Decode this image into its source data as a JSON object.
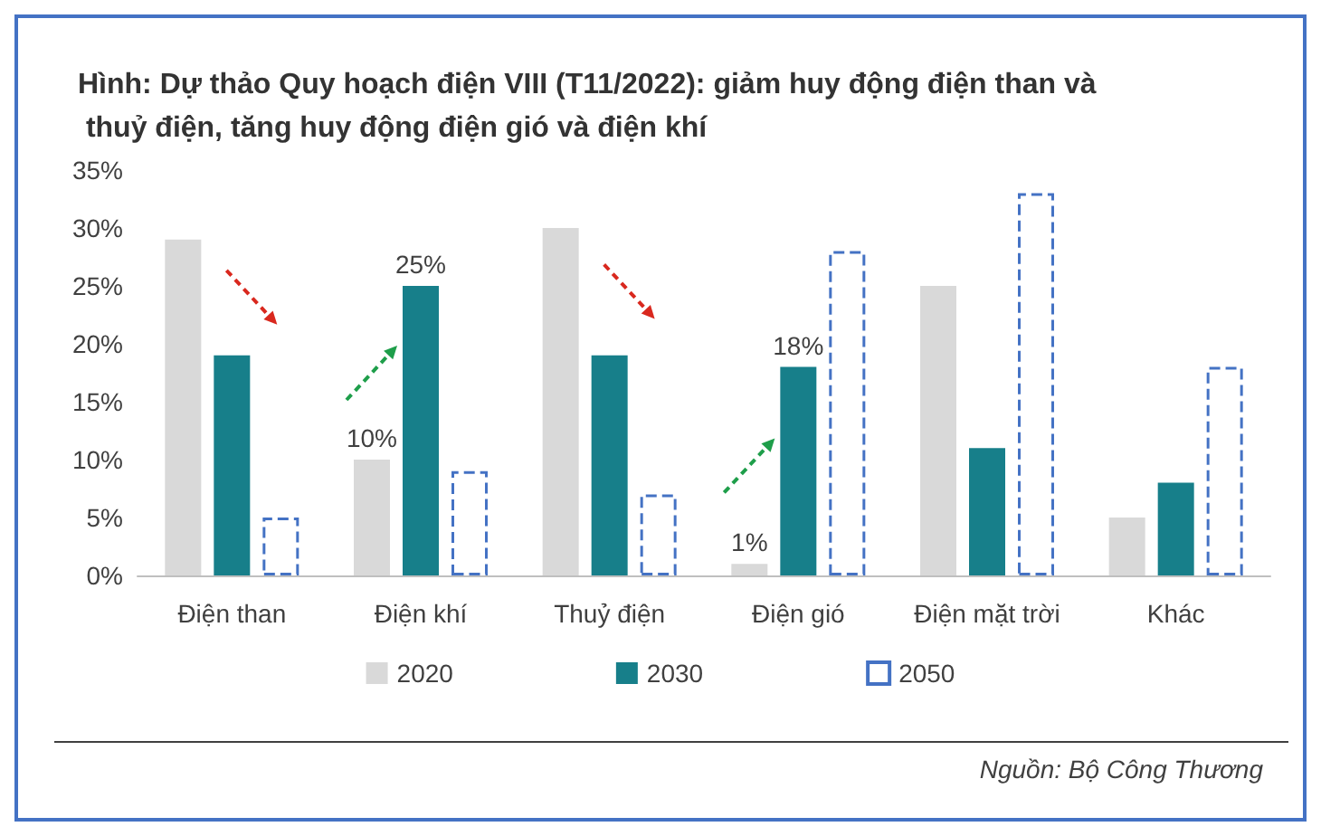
{
  "chart_data": {
    "type": "bar",
    "title": "Hình: Dự thảo Quy hoạch điện VIII (T11/2022): giảm huy động điện than và thuỷ điện, tăng huy động điện gió và điện khí",
    "categories": [
      "Điện than",
      "Điện khí",
      "Thuỷ điện",
      "Điện gió",
      "Điện mặt trời",
      "Khác"
    ],
    "series": [
      {
        "name": "2020",
        "color": "#d9d9d9",
        "values": [
          29,
          10,
          30,
          1,
          25,
          5
        ],
        "value_labels": [
          null,
          "10%",
          null,
          "1%",
          null,
          null
        ]
      },
      {
        "name": "2030",
        "color": "#177f8a",
        "values": [
          19,
          25,
          19,
          18,
          11,
          8
        ],
        "value_labels": [
          null,
          "25%",
          null,
          "18%",
          null,
          null
        ]
      },
      {
        "name": "2050",
        "color": "#4472c4",
        "line_style": "dashed",
        "values": [
          5,
          9,
          7,
          28,
          33,
          18
        ]
      }
    ],
    "ylim": [
      0,
      35
    ],
    "yticks": [
      {
        "value": 0,
        "label": "0%"
      },
      {
        "value": 5,
        "label": "5%"
      },
      {
        "value": 10,
        "label": "10%"
      },
      {
        "value": 15,
        "label": "15%"
      },
      {
        "value": 20,
        "label": "20%"
      },
      {
        "value": 25,
        "label": "25%"
      },
      {
        "value": 30,
        "label": "30%"
      },
      {
        "value": 35,
        "label": "35%"
      }
    ],
    "legend": "bottom",
    "grid": false,
    "annotations": [
      "Nguồn: Bộ Công Thương"
    ]
  }
}
